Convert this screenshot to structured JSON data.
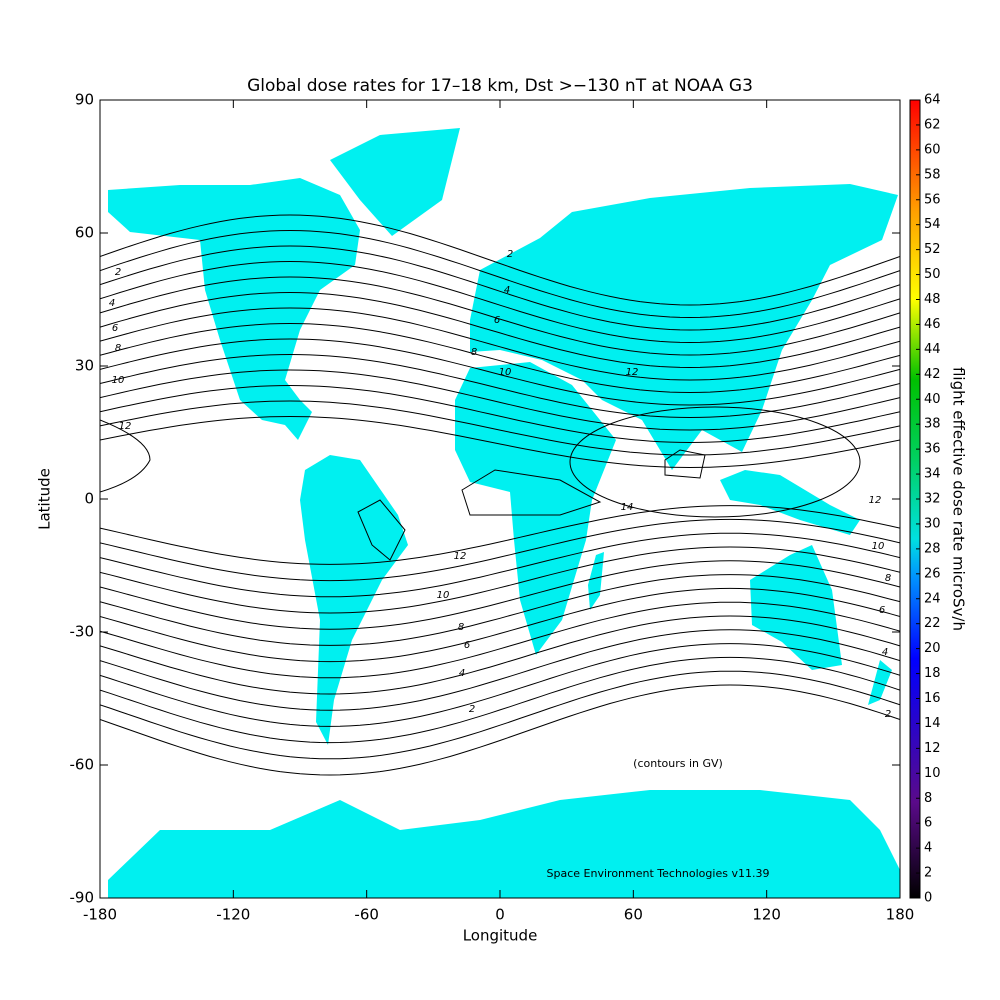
{
  "title": "Global dose rates for 17–18 km, Dst >−130 nT at NOAA G3",
  "map": {
    "xlabel": "Longitude",
    "ylabel": "Latitude",
    "xlim": [
      -180,
      180
    ],
    "ylim": [
      -90,
      90
    ],
    "xticks": [
      -180,
      -120,
      -60,
      0,
      60,
      120,
      180
    ],
    "yticks": [
      -90,
      -60,
      -30,
      0,
      30,
      60,
      90
    ],
    "land_color": "#00f0f0",
    "contour_labels": [
      2,
      4,
      6,
      8,
      10,
      12,
      2,
      4,
      6,
      8,
      10,
      12,
      14,
      12,
      10,
      8,
      6,
      4,
      2,
      12,
      10,
      8,
      6,
      4,
      2
    ],
    "notes": [
      "(contours in GV)",
      "Space Environment Technologies v11.39"
    ]
  },
  "colorbar": {
    "label": "flight effective dose rate microSv/h",
    "lim": [
      0,
      64
    ],
    "ticks": [
      0,
      2,
      4,
      6,
      8,
      10,
      12,
      14,
      16,
      18,
      20,
      22,
      24,
      26,
      28,
      30,
      32,
      34,
      36,
      38,
      40,
      42,
      44,
      46,
      48,
      50,
      52,
      54,
      56,
      58,
      60,
      62,
      64
    ]
  }
}
